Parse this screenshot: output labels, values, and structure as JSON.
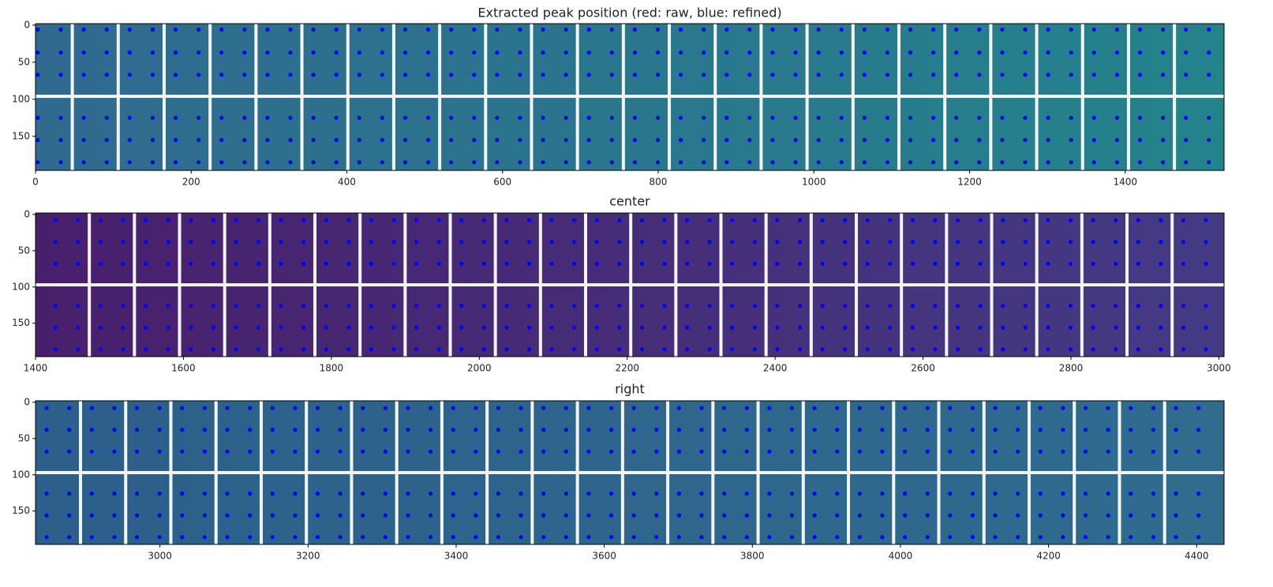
{
  "chart_data": [
    {
      "type": "scatter",
      "title": "Extracted peak position (red: raw, blue: refined)",
      "xlim": [
        0,
        1527
      ],
      "ylim": [
        196,
        -2
      ],
      "xticks": [
        0,
        200,
        400,
        600,
        800,
        1000,
        1200,
        1400
      ],
      "yticks": [
        0,
        50,
        100,
        150
      ],
      "background": [
        "#306a8f",
        "#23838b"
      ],
      "color": "#0000ff",
      "columns": [
        3,
        32.5,
        62,
        91.5,
        121,
        150.5,
        180,
        209.5,
        239,
        268.5,
        298,
        327.5,
        357,
        386.5,
        416,
        445.5,
        475,
        504.5,
        534,
        563.5,
        593,
        622.5,
        652,
        681.5,
        711,
        740.5,
        770,
        799.5,
        829,
        858.5,
        888,
        917.5,
        947,
        976.5,
        1006,
        1035.5,
        1065,
        1094.5,
        1124,
        1153.5,
        1183,
        1212.5,
        1242,
        1271.5,
        1301,
        1330.5,
        1360,
        1389.5,
        1419,
        1448.5,
        1478,
        1507.5
      ],
      "rows": [
        6,
        37,
        67,
        125,
        155,
        185
      ]
    },
    {
      "type": "scatter",
      "title": "center",
      "xlim": [
        1400,
        3007
      ],
      "ylim": [
        196,
        -2
      ],
      "xticks": [
        1400,
        1600,
        1800,
        2000,
        2200,
        2400,
        2600,
        2800,
        3000
      ],
      "yticks": [
        0,
        50,
        100,
        150
      ],
      "background": [
        "#481f6c",
        "#443b84"
      ],
      "color": "#0000ff",
      "columns": [
        1427,
        1457.5,
        1488,
        1518.5,
        1549,
        1579.5,
        1610,
        1640.5,
        1671,
        1701.5,
        1732,
        1762.5,
        1793,
        1823.5,
        1854,
        1884.5,
        1915,
        1945.5,
        1976,
        2006.5,
        2037,
        2067.5,
        2098,
        2128.5,
        2159,
        2189.5,
        2220,
        2250.5,
        2281,
        2311.5,
        2342,
        2372.5,
        2403,
        2433.5,
        2464,
        2494.5,
        2525,
        2555.5,
        2586,
        2616.5,
        2647,
        2677.5,
        2708,
        2738.5,
        2769,
        2799.5,
        2830,
        2860.5,
        2891,
        2921.5,
        2952,
        2982.5
      ],
      "rows": [
        8,
        38,
        68,
        126,
        156,
        186
      ]
    },
    {
      "type": "scatter",
      "title": "right",
      "xlim": [
        2832,
        4437
      ],
      "ylim": [
        196,
        -2
      ],
      "xticks": [
        3000,
        3200,
        3400,
        3600,
        3800,
        4000,
        4200,
        4400
      ],
      "yticks": [
        0,
        50,
        100,
        150
      ],
      "background": [
        "#2c5f8a",
        "#2f6c8e"
      ],
      "color": "#0000ff",
      "columns": [
        2847,
        2877.5,
        2908,
        2938.5,
        2969,
        2999.5,
        3030,
        3060.5,
        3091,
        3121.5,
        3152,
        3182.5,
        3213,
        3243.5,
        3274,
        3304.5,
        3335,
        3365.5,
        3396,
        3426.5,
        3457,
        3487.5,
        3518,
        3548.5,
        3579,
        3609.5,
        3640,
        3670.5,
        3701,
        3731.5,
        3762,
        3792.5,
        3823,
        3853.5,
        3884,
        3914.5,
        3945,
        3975.5,
        4006,
        4036.5,
        4067,
        4097.5,
        4128,
        4158.5,
        4189,
        4219.5,
        4250,
        4280.5,
        4311,
        4341.5,
        4372,
        4402.5
      ],
      "rows": [
        8,
        38,
        68,
        126,
        156,
        186
      ]
    }
  ]
}
